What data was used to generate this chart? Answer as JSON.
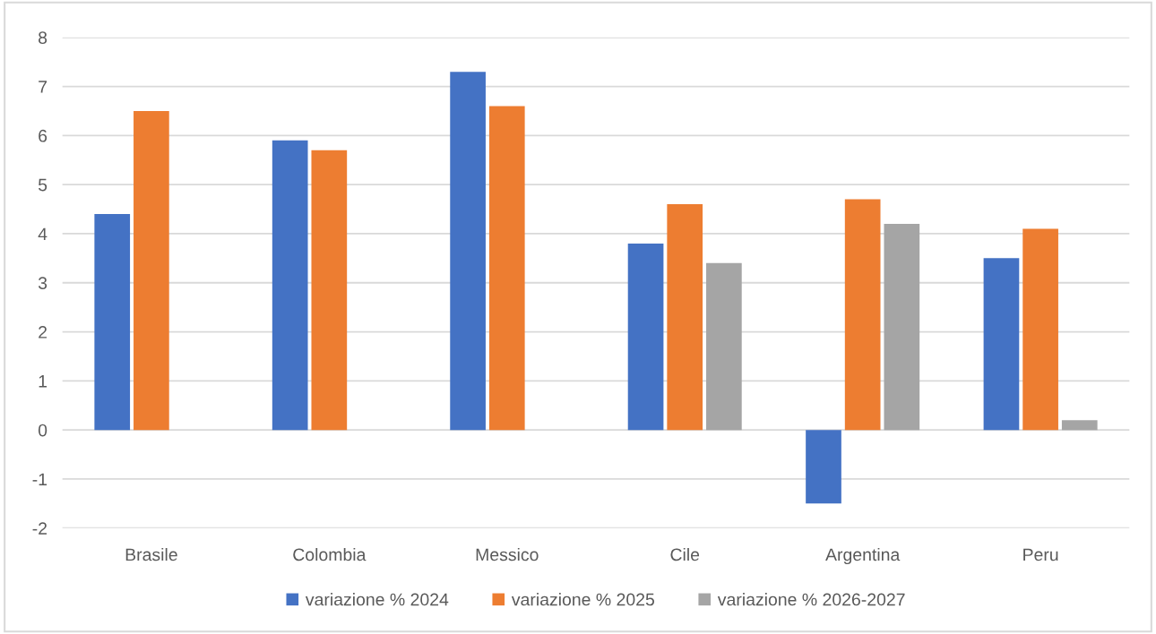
{
  "chart_data": {
    "type": "bar",
    "categories": [
      "Brasile",
      "Colombia",
      "Messico",
      "Cile",
      "Argentina",
      "Peru"
    ],
    "series": [
      {
        "name": "variazione % 2024",
        "color": "#4472c4",
        "values": [
          4.4,
          5.9,
          7.3,
          3.8,
          -1.5,
          3.5
        ]
      },
      {
        "name": "variazione % 2025",
        "color": "#ed7d31",
        "values": [
          6.5,
          5.7,
          6.6,
          4.6,
          4.7,
          4.1
        ]
      },
      {
        "name": "variazione % 2026-2027",
        "color": "#a5a5a5",
        "values": [
          null,
          null,
          null,
          3.4,
          4.2,
          0.2
        ]
      }
    ],
    "ylim": [
      -2,
      8
    ],
    "yticks": [
      -2,
      -1,
      0,
      1,
      2,
      3,
      4,
      5,
      6,
      7,
      8
    ],
    "grid": "y",
    "legend": "bottom"
  }
}
